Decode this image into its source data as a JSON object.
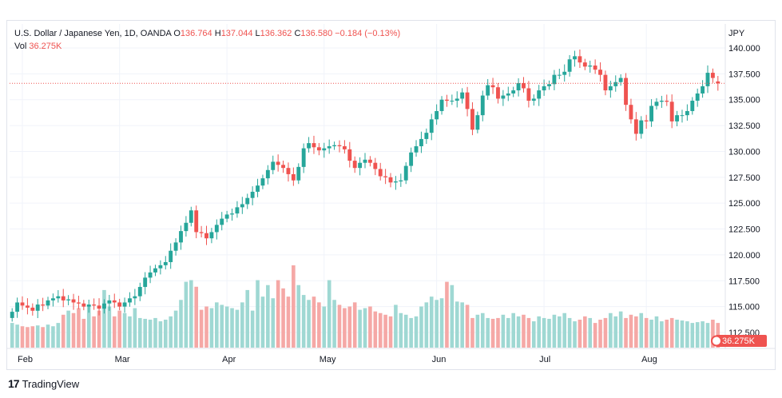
{
  "header": {
    "symbol": "U.S. Dollar / Japanese Yen, 1D, OANDA",
    "o_label": "O",
    "o_value": "136.764",
    "h_label": "H",
    "h_value": "137.044",
    "l_label": "L",
    "l_value": "136.362",
    "c_label": "C",
    "c_value": "136.580",
    "change": "−0.184 (−0.13%)",
    "vol_label": "Vol",
    "vol_value": "36.275K"
  },
  "footer": {
    "brand": "TradingView"
  },
  "colors": {
    "up": "#26a69a",
    "down": "#ef5350",
    "up_vol": "#9fd8d3",
    "down_vol": "#f5a8a6",
    "grid": "#f0f3fa"
  },
  "chart_data": {
    "type": "candlestick",
    "currency_label": "JPY",
    "y_ticks": [
      "140.000",
      "137.500",
      "135.000",
      "132.500",
      "130.000",
      "127.500",
      "125.000",
      "122.500",
      "120.000",
      "117.500",
      "115.000",
      "112.500"
    ],
    "ylim": [
      111.5,
      141.2
    ],
    "x_labels": [
      {
        "label": "Feb",
        "index": 2
      },
      {
        "label": "Mar",
        "index": 21
      },
      {
        "label": "Apr",
        "index": 42
      },
      {
        "label": "May",
        "index": 61
      },
      {
        "label": "Jun",
        "index": 83
      },
      {
        "label": "Jul",
        "index": 104
      },
      {
        "label": "Aug",
        "index": 124
      }
    ],
    "last_price": 136.58,
    "volume_badge": "36.275K",
    "close": [
      114.5,
      115.4,
      115.1,
      114.9,
      114.6,
      115.2,
      115.1,
      115.6,
      115.8,
      116.0,
      115.6,
      115.7,
      115.4,
      115.3,
      115.0,
      115.2,
      115.1,
      114.8,
      115.3,
      115.6,
      115.4,
      115.0,
      115.4,
      115.8,
      116.0,
      116.9,
      117.8,
      118.3,
      118.7,
      119.0,
      119.3,
      120.4,
      121.2,
      122.3,
      123.1,
      124.3,
      122.2,
      122.1,
      121.6,
      122.2,
      122.9,
      123.5,
      123.9,
      124.0,
      124.6,
      124.9,
      125.5,
      126.1,
      126.7,
      127.4,
      128.2,
      129.0,
      128.7,
      128.4,
      127.8,
      127.2,
      128.5,
      130.3,
      130.8,
      130.4,
      130.1,
      130.3,
      130.5,
      130.6,
      130.5,
      130.2,
      129.1,
      128.4,
      128.9,
      129.2,
      128.9,
      128.3,
      127.6,
      127.5,
      127.0,
      127.1,
      127.2,
      128.6,
      129.9,
      130.5,
      131.2,
      131.8,
      133.1,
      133.9,
      135.0,
      134.9,
      134.9,
      135.1,
      135.7,
      134.1,
      132.1,
      133.5,
      135.4,
      136.4,
      136.2,
      135.1,
      135.4,
      135.6,
      135.9,
      136.6,
      136.1,
      134.9,
      135.1,
      135.9,
      136.3,
      136.5,
      137.4,
      137.4,
      137.7,
      138.9,
      139.2,
      138.6,
      138.2,
      138.3,
      137.9,
      137.4,
      135.9,
      136.3,
      136.7,
      137.1,
      134.5,
      133.1,
      131.7,
      133.0,
      132.9,
      134.4,
      134.8,
      134.9,
      134.8,
      132.9,
      133.5,
      133.5,
      133.9,
      134.9,
      135.6,
      136.3,
      137.6,
      137.1,
      136.58
    ],
    "open": [
      113.9,
      114.5,
      115.4,
      115.1,
      114.9,
      114.6,
      115.2,
      115.1,
      115.6,
      115.8,
      116.0,
      115.6,
      115.7,
      115.4,
      115.3,
      115.0,
      115.2,
      115.1,
      114.8,
      115.3,
      115.6,
      115.4,
      115.0,
      115.4,
      115.8,
      116.0,
      116.9,
      117.8,
      118.3,
      118.7,
      119.0,
      119.3,
      120.4,
      121.2,
      122.3,
      123.1,
      124.3,
      122.2,
      122.1,
      121.6,
      122.2,
      122.9,
      123.5,
      123.9,
      124.0,
      124.6,
      124.9,
      125.5,
      126.1,
      126.7,
      127.4,
      128.2,
      129.0,
      128.7,
      128.4,
      127.8,
      127.2,
      128.5,
      130.3,
      130.8,
      130.4,
      130.1,
      130.3,
      130.5,
      130.6,
      130.5,
      130.2,
      129.1,
      128.4,
      128.9,
      129.2,
      128.9,
      128.3,
      127.6,
      127.5,
      127.0,
      127.1,
      127.2,
      128.6,
      129.9,
      130.5,
      131.2,
      131.8,
      133.1,
      133.9,
      135.0,
      134.9,
      134.9,
      135.1,
      135.7,
      134.1,
      132.1,
      133.5,
      135.4,
      136.4,
      136.2,
      135.1,
      135.4,
      135.6,
      135.9,
      136.6,
      136.1,
      134.9,
      135.1,
      135.9,
      136.3,
      136.5,
      137.4,
      137.4,
      137.7,
      138.9,
      139.2,
      138.6,
      138.2,
      138.3,
      137.9,
      137.4,
      135.9,
      136.3,
      136.7,
      137.1,
      134.5,
      133.1,
      131.7,
      133.0,
      132.9,
      134.4,
      134.8,
      134.9,
      134.8,
      132.9,
      133.5,
      133.5,
      133.9,
      134.9,
      135.6,
      136.3,
      137.6,
      136.764
    ],
    "volume_rel": [
      0.3,
      0.28,
      0.26,
      0.25,
      0.26,
      0.27,
      0.25,
      0.28,
      0.26,
      0.3,
      0.4,
      0.45,
      0.42,
      0.48,
      0.35,
      0.52,
      0.38,
      0.45,
      0.7,
      0.5,
      0.38,
      0.45,
      0.42,
      0.38,
      0.48,
      0.36,
      0.35,
      0.34,
      0.36,
      0.32,
      0.34,
      0.38,
      0.45,
      0.58,
      0.8,
      0.82,
      0.74,
      0.46,
      0.5,
      0.48,
      0.55,
      0.52,
      0.5,
      0.48,
      0.46,
      0.55,
      0.7,
      0.45,
      0.82,
      0.62,
      0.76,
      0.6,
      0.82,
      0.72,
      0.62,
      1.0,
      0.76,
      0.64,
      0.58,
      0.62,
      0.55,
      0.5,
      0.82,
      0.58,
      0.52,
      0.48,
      0.5,
      0.55,
      0.46,
      0.48,
      0.5,
      0.44,
      0.42,
      0.4,
      0.38,
      0.52,
      0.42,
      0.4,
      0.36,
      0.38,
      0.5,
      0.55,
      0.62,
      0.58,
      0.6,
      0.8,
      0.76,
      0.56,
      0.55,
      0.52,
      0.36,
      0.4,
      0.42,
      0.36,
      0.35,
      0.36,
      0.4,
      0.36,
      0.42,
      0.38,
      0.4,
      0.36,
      0.32,
      0.38,
      0.36,
      0.35,
      0.4,
      0.38,
      0.42,
      0.36,
      0.32,
      0.34,
      0.38,
      0.36,
      0.3,
      0.34,
      0.36,
      0.42,
      0.38,
      0.44,
      0.36,
      0.4,
      0.38,
      0.42,
      0.36,
      0.34,
      0.38,
      0.32,
      0.34,
      0.36,
      0.34,
      0.33,
      0.32,
      0.3,
      0.31,
      0.32,
      0.3,
      0.34,
      0.3
    ]
  }
}
